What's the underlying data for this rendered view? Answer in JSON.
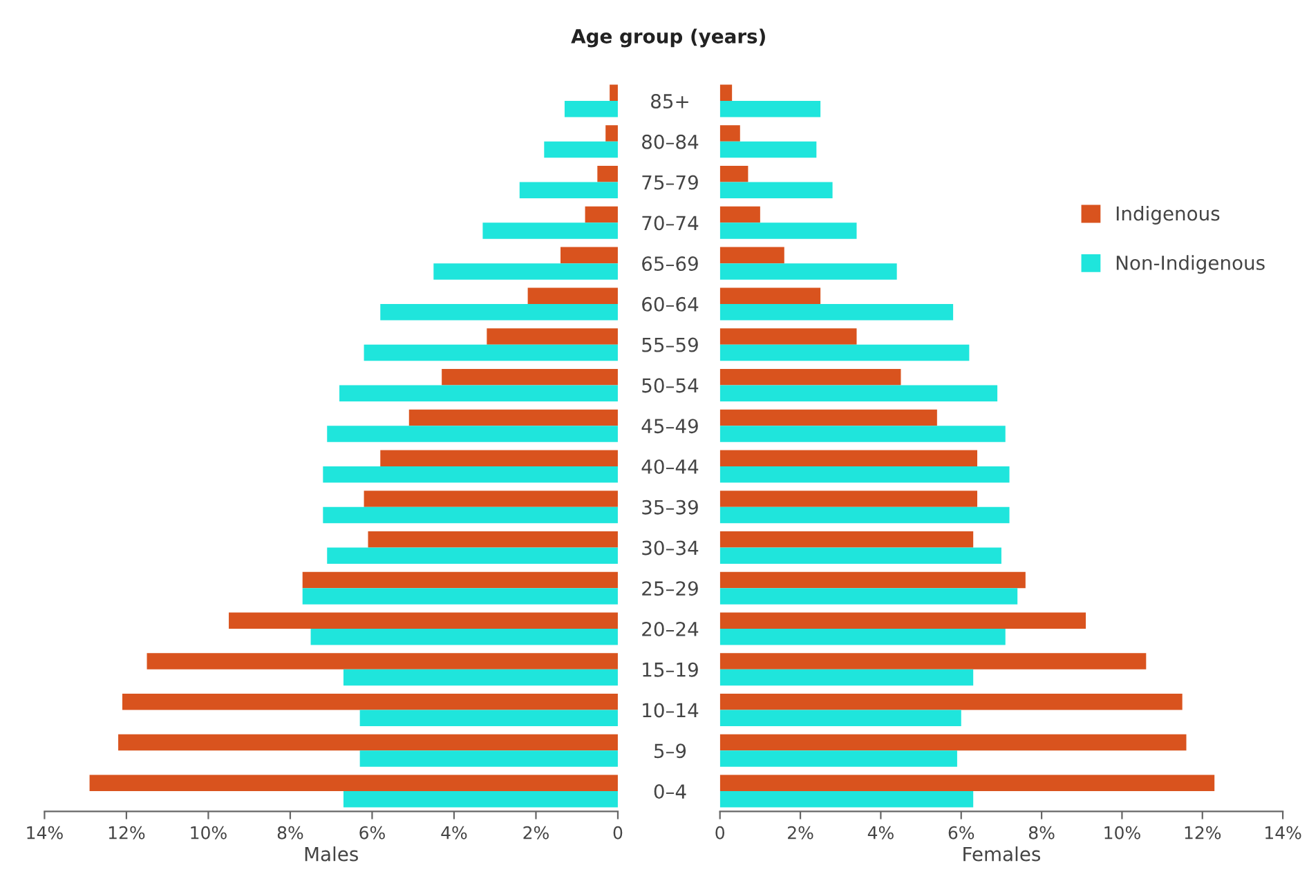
{
  "chart_data": [
    {
      "type": "bar",
      "orientation": "horizontal",
      "xlabel": "Males",
      "series": [
        {
          "color": "#d9531e",
          "values": [
            0.2,
            0.3,
            0.5,
            0.8,
            1.4,
            2.2,
            3.2,
            4.3,
            5.1,
            5.8,
            6.2,
            6.1,
            7.7,
            9.5,
            11.5,
            12.1,
            12.2,
            12.9
          ]
        },
        {
          "color": "#1fe5dc",
          "values": [
            1.3,
            1.8,
            2.4,
            3.3,
            4.5,
            5.8,
            6.2,
            6.8,
            7.1,
            7.2,
            7.2,
            7.1,
            7.7,
            7.5,
            6.7,
            6.3,
            6.3,
            6.7
          ]
        }
      ],
      "xlim": [
        14,
        0
      ],
      "xticks": [
        {
          "value": 14,
          "label": "14%"
        },
        {
          "value": 12,
          "label": "12%"
        },
        {
          "value": 10,
          "label": "10%"
        },
        {
          "value": 8,
          "label": "8%"
        },
        {
          "value": 6,
          "label": "6%"
        },
        {
          "value": 4,
          "label": "4%"
        },
        {
          "value": 2,
          "label": "2%"
        },
        0
      ],
      "tick_labels": "x",
      "grid": false,
      "legend": false
    },
    {
      "type": "bar",
      "orientation": "horizontal",
      "xlabel": "Females",
      "ylabel": "Age group (years)",
      "categories": [
        "85+",
        "80–84",
        "75–79",
        "70–74",
        "65–69",
        "60–64",
        "55–59",
        "50–54",
        "45–49",
        "40–44",
        "35–39",
        "30–34",
        "25–29",
        "20–24",
        "15–19",
        "10–14",
        "5–9",
        "0–4"
      ],
      "series": [
        {
          "name": "Indigenous",
          "color": "#d9531e",
          "values": [
            0.3,
            0.5,
            0.7,
            1.0,
            1.6,
            2.5,
            3.4,
            4.5,
            5.4,
            6.4,
            6.4,
            6.3,
            7.6,
            9.1,
            10.6,
            11.5,
            11.6,
            12.3
          ]
        },
        {
          "name": "Non-Indigenous",
          "color": "#1fe5dc",
          "values": [
            2.5,
            2.4,
            2.8,
            3.4,
            4.4,
            5.8,
            6.2,
            6.9,
            7.1,
            7.2,
            7.2,
            7.0,
            7.4,
            7.1,
            6.3,
            6.0,
            5.9,
            6.3
          ]
        }
      ],
      "xlim": [
        0,
        14
      ],
      "xticks": [
        0,
        {
          "value": 2,
          "label": "2%"
        },
        {
          "value": 4,
          "label": "4%"
        },
        {
          "value": 6,
          "label": "6%"
        },
        {
          "value": 8,
          "label": "8%"
        },
        {
          "value": 10,
          "label": "10%"
        },
        {
          "value": 12,
          "label": "12%"
        },
        {
          "value": 14,
          "label": "14%"
        }
      ],
      "grid": false,
      "legend": "right"
    }
  ]
}
